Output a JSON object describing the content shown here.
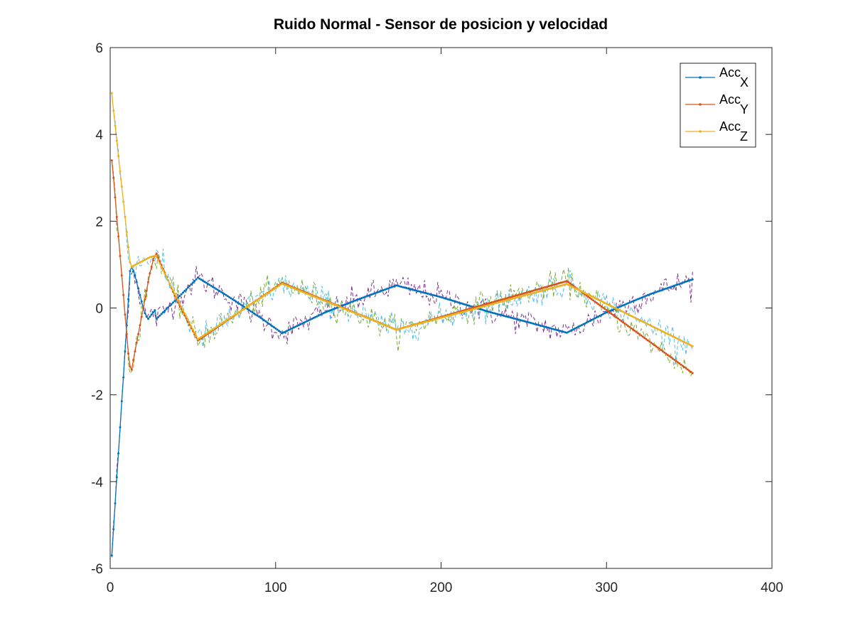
{
  "chart_data": {
    "type": "line",
    "title": "Ruido Normal - Sensor de posicion y velocidad",
    "xlabel": "",
    "ylabel": "",
    "xlim": [
      0,
      400
    ],
    "ylim": [
      -6,
      6
    ],
    "xticks": [
      0,
      100,
      200,
      300,
      400
    ],
    "yticks": [
      -6,
      -4,
      -2,
      0,
      2,
      4,
      6
    ],
    "grid": false,
    "legend_position": "top-right",
    "series": [
      {
        "name": "Acc_X",
        "legend_base": "Acc",
        "legend_sub": "X",
        "color": "#0072bd",
        "noise_color": "#7e2f8e",
        "x": [
          1,
          2,
          3,
          4,
          5,
          6,
          7,
          8,
          9,
          10,
          11,
          12,
          13,
          14,
          15,
          16,
          17,
          18,
          19,
          20,
          21,
          22,
          23,
          24,
          25,
          26,
          27,
          28,
          40,
          53,
          70,
          90,
          104,
          130,
          150,
          173,
          200,
          230,
          250,
          276,
          300,
          325,
          352
        ],
        "y": [
          -5.7,
          -5.1,
          -4.5,
          -3.9,
          -3.35,
          -2.75,
          -2.15,
          -1.6,
          -1.0,
          -0.4,
          0.2,
          0.85,
          0.95,
          0.85,
          0.75,
          0.6,
          0.45,
          0.3,
          0.15,
          0.0,
          -0.12,
          -0.2,
          -0.25,
          -0.2,
          -0.15,
          -0.1,
          -0.05,
          -0.25,
          0.2,
          0.7,
          0.3,
          -0.2,
          -0.58,
          -0.1,
          0.2,
          0.52,
          0.25,
          -0.1,
          -0.3,
          -0.57,
          -0.1,
          0.3,
          0.66
        ]
      },
      {
        "name": "Acc_Y",
        "legend_base": "Acc",
        "legend_sub": "Y",
        "color": "#d95319",
        "noise_color": "#77ac30",
        "x": [
          1,
          2,
          3,
          4,
          5,
          6,
          7,
          8,
          9,
          10,
          11,
          12,
          13,
          14,
          15,
          16,
          17,
          18,
          19,
          20,
          21,
          22,
          23,
          24,
          25,
          26,
          27,
          28,
          40,
          53,
          104,
          173,
          276,
          352
        ],
        "y": [
          3.4,
          3.0,
          2.55,
          2.1,
          1.65,
          1.2,
          0.75,
          0.3,
          -0.15,
          -0.6,
          -1.05,
          -1.35,
          -1.42,
          -1.2,
          -1.0,
          -0.8,
          -0.6,
          -0.4,
          -0.2,
          0.0,
          0.2,
          0.4,
          0.6,
          0.8,
          0.95,
          1.1,
          1.2,
          1.25,
          0.2,
          -0.75,
          0.58,
          -0.5,
          0.62,
          -1.5
        ]
      },
      {
        "name": "Acc_Z",
        "legend_base": "Acc",
        "legend_sub": "Z",
        "color": "#edb120",
        "noise_color": "#4dbeee",
        "x": [
          1,
          2,
          3,
          4,
          5,
          6,
          7,
          8,
          9,
          10,
          11,
          12,
          13,
          14,
          15,
          16,
          17,
          18,
          19,
          20,
          21,
          22,
          23,
          24,
          25,
          26,
          27,
          28,
          40,
          53,
          104,
          173,
          276,
          352
        ],
        "y": [
          4.95,
          4.55,
          4.2,
          3.85,
          3.5,
          3.15,
          2.8,
          2.45,
          2.1,
          1.75,
          1.4,
          1.05,
          0.95,
          0.97,
          0.99,
          1.01,
          1.03,
          1.05,
          1.07,
          1.09,
          1.11,
          1.13,
          1.15,
          1.17,
          1.18,
          1.19,
          1.2,
          1.18,
          0.25,
          -0.72,
          0.56,
          -0.5,
          0.55,
          -0.88
        ]
      }
    ]
  }
}
